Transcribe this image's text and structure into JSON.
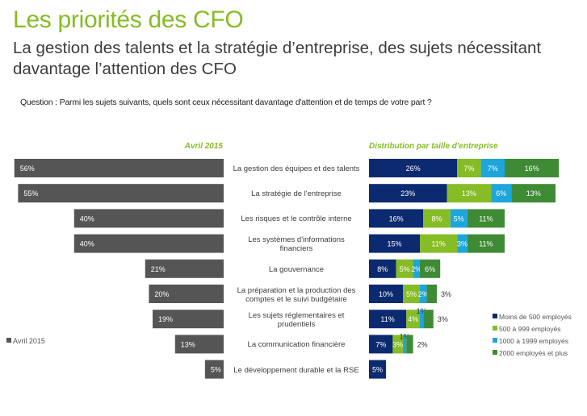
{
  "header": {
    "title": "Les priorités des CFO",
    "subtitle": "La gestion des talents et la stratégie d’entreprise, des sujets nécessitant davantage l’attention des CFO",
    "question": "Question : Parmi les sujets suivants, quels sont ceux nécessitant davantage d'attention et de temps de votre part ?"
  },
  "colors": {
    "title": "#86bc25",
    "left_bar": "#555555",
    "moins_500": "#0b2a6f",
    "s500_999": "#86bc25",
    "s1000_1999": "#1ea5dc",
    "s2000_plus": "#3f8b35"
  },
  "chart_data": [
    {
      "type": "bar",
      "title": "Avril 2015",
      "orientation": "horizontal",
      "direction": "right-to-left",
      "categories": [
        "La gestion des équipes et des talents",
        "La stratégie de l'entreprise",
        "Les risques et le contrôle interne",
        "Les systèmes d'informations financiers",
        "La gouvernance",
        "La préparation et la production des comptes et le suivi budgétaire",
        "Les sujets réglementaires et prudentiels",
        "La communication financière",
        "Le développement durable et la RSE"
      ],
      "series": [
        {
          "name": "Avril 2015",
          "values": [
            56,
            55,
            40,
            40,
            21,
            20,
            19,
            13,
            5
          ]
        }
      ],
      "data_labels": [
        "56%",
        "55%",
        "40%",
        "40%",
        "21%",
        "20%",
        "19%",
        "13%",
        "5%"
      ],
      "legend": {
        "entries": [
          "Avril 2015"
        ],
        "position": "left"
      },
      "xlim": [
        0,
        56
      ]
    },
    {
      "type": "bar",
      "stacked": true,
      "orientation": "horizontal",
      "title": "Distribution par taille d'entreprise",
      "categories": [
        "La gestion des équipes et des talents",
        "La stratégie de l'entreprise",
        "Les risques et le contrôle interne",
        "Les systèmes d'informations financiers",
        "La gouvernance",
        "La préparation et la production des comptes et le suivi budgétaire",
        "Les sujets réglementaires et prudentiels",
        "La communication financière",
        "Le développement durable et la RSE"
      ],
      "series": [
        {
          "name": "Moins de 500 employés",
          "values": [
            26,
            23,
            16,
            15,
            8,
            10,
            11,
            7,
            5
          ]
        },
        {
          "name": "500 à 999 employés",
          "values": [
            7,
            13,
            8,
            11,
            5,
            5,
            4,
            3,
            0
          ]
        },
        {
          "name": "1000 à 1999 employés",
          "values": [
            7,
            6,
            5,
            3,
            2,
            2,
            1,
            1,
            0
          ]
        },
        {
          "name": "2000 employés et plus",
          "values": [
            16,
            13,
            11,
            11,
            6,
            3,
            3,
            2,
            0
          ]
        }
      ],
      "legend": {
        "entries": [
          "Moins de 500 employés",
          "500 à 999 employés",
          "1000 à 1999 employés",
          "2000 employés et plus"
        ],
        "position": "bottom-right"
      }
    }
  ]
}
